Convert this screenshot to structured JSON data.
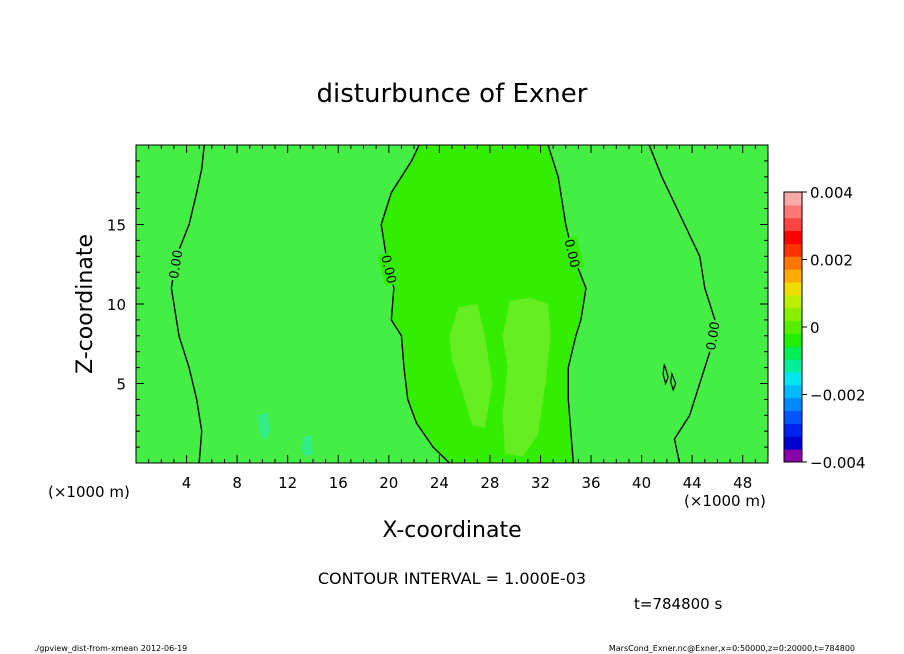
{
  "chart_data": {
    "type": "heatmap",
    "title": "disturbunce of Exner",
    "xlabel": "X-coordinate",
    "ylabel": "Z-coordinate",
    "x_unit_left": "(×1000 m)",
    "x_unit_right": "(×1000 m)",
    "xlim": [
      0,
      50
    ],
    "ylim": [
      0,
      20
    ],
    "x_ticks": [
      4,
      8,
      12,
      16,
      20,
      24,
      28,
      32,
      36,
      40,
      44,
      48
    ],
    "x_tick_labels": [
      "4",
      "8",
      "12",
      "16",
      "20",
      "24",
      "28",
      "32",
      "36",
      "40",
      "44",
      "48"
    ],
    "y_ticks": [
      5,
      10,
      15
    ],
    "y_tick_labels": [
      "5",
      "10",
      "15"
    ],
    "colorbar": {
      "range": [
        -0.004,
        0.004
      ],
      "tick_values": [
        0.004,
        0.002,
        0,
        -0.002,
        -0.004
      ],
      "tick_labels": [
        "0.004",
        "0.002",
        "0",
        "−0.002",
        "−0.004"
      ],
      "colors": [
        "#8800aa",
        "#0000cc",
        "#0022ee",
        "#0055ff",
        "#0088ff",
        "#00bbff",
        "#00e5ee",
        "#00ee99",
        "#00ee55",
        "#22ee00",
        "#55ee00",
        "#88ee00",
        "#bbee00",
        "#eedd00",
        "#ffaa00",
        "#ff7700",
        "#ff3300",
        "#ff0000",
        "#ff4444",
        "#ff7777",
        "#ffaaaa"
      ]
    },
    "fill_regions": [
      {
        "level": "0 to 0.0004",
        "color": "#33ee00"
      },
      {
        "level": "0 to -0.0004",
        "color": "#44ee44"
      },
      {
        "level": "0.0004 to 0.0008",
        "color": "#66ee22"
      },
      {
        "level": "-0.0004 to -0.0008",
        "color": "#33ee88"
      }
    ],
    "contours": [
      {
        "label": "0.00",
        "x": [
          5.0,
          5.2,
          4.8,
          4.2,
          3.4,
          3.0,
          2.8,
          3.2,
          4.2,
          4.8,
          5.2,
          5.4
        ],
        "y": [
          0,
          2,
          4,
          6,
          8,
          10,
          11,
          13,
          15,
          17,
          18.5,
          20
        ]
      },
      {
        "label": "0.00",
        "x": [
          24.8,
          23.5,
          22.2,
          21.5,
          21.2,
          21.0,
          20.2,
          20.4,
          19.8,
          19.4,
          20.2,
          21.8,
          22.4
        ],
        "y": [
          0,
          1,
          2.5,
          4,
          6,
          8,
          9,
          11,
          13,
          15,
          17,
          19,
          20
        ]
      },
      {
        "label": "0.00",
        "x": [
          34.6,
          34.4,
          34.2,
          34.2,
          34.8,
          35.2,
          35.6,
          34.6,
          34.0,
          33.4,
          32.6
        ],
        "y": [
          0,
          2,
          4,
          6,
          8,
          9,
          11,
          13,
          15,
          18,
          20
        ]
      },
      {
        "label": "0.00",
        "x": [
          43.0,
          42.6,
          43.8,
          44.6,
          45.4,
          45.8,
          45.0,
          44.6,
          43.4,
          41.6,
          40.6
        ],
        "y": [
          0,
          1.5,
          3,
          5,
          7,
          9,
          11,
          13,
          15,
          18,
          20
        ]
      }
    ],
    "annotation": "CONTOUR INTERVAL = 1.000E-03",
    "time_label": "t=784800 s"
  },
  "footer": {
    "left": "./gpview_dist-from-xmean  2012-06-19",
    "right": "MarsCond_Exner.nc@Exner,x=0:50000,z=0:20000,t=784800"
  }
}
